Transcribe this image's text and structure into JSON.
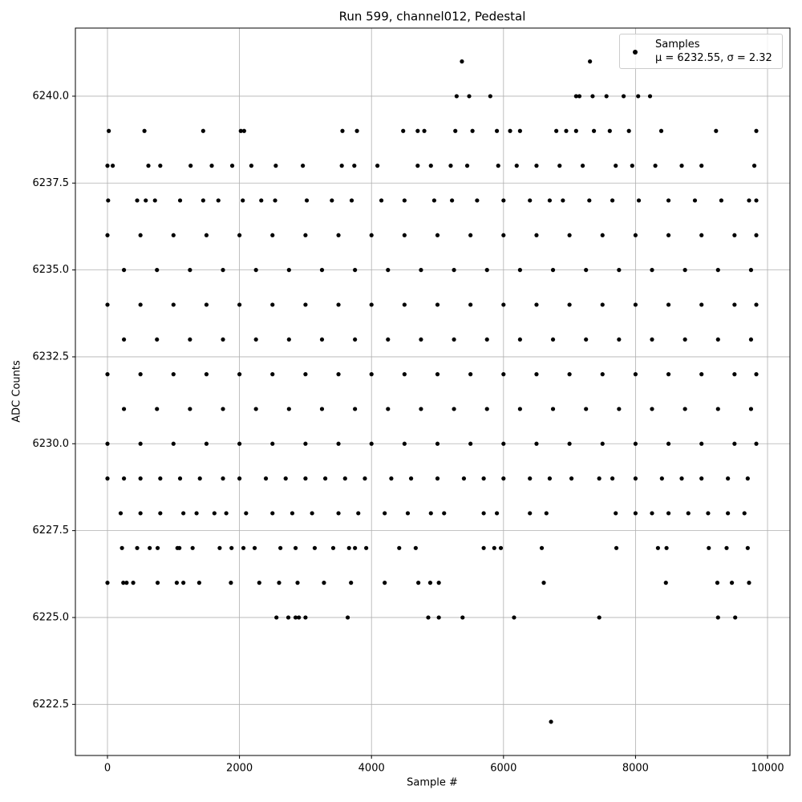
{
  "chart_data": {
    "type": "scatter",
    "title": "Run 599, channel012, Pedestal",
    "x_label": "Sample #",
    "y_label": "ADC Counts",
    "xlim": [
      -486,
      10340
    ],
    "ylim": [
      6221.03,
      6241.96
    ],
    "xticks": [
      0,
      2000,
      4000,
      6000,
      8000,
      10000
    ],
    "yticks": [
      {
        "value": 6222.5,
        "label": "6222.5"
      },
      {
        "value": 6225,
        "label": "6225.0"
      },
      {
        "value": 6227.5,
        "label": "6227.5"
      },
      {
        "value": 6230,
        "label": "6230.0"
      },
      {
        "value": 6232.5,
        "label": "6232.5"
      },
      {
        "value": 6235,
        "label": "6235.0"
      },
      {
        "value": 6237.5,
        "label": "6237.5"
      },
      {
        "value": 6240,
        "label": "6240.0"
      }
    ],
    "grid": true,
    "legend": "upper right",
    "series": [
      {
        "name": "Samples\nμ = 6232.55, σ = 2.32",
        "color": "#000000",
        "x": [
          0,
          500,
          1000,
          1500,
          2000,
          2500,
          3000,
          3500,
          4000,
          4500,
          5000,
          5500,
          6000,
          6500,
          7000,
          7500,
          8000,
          8500,
          9000,
          9500,
          9830,
          250,
          750,
          1250,
          1750,
          2250,
          2750,
          3250,
          3750,
          4250,
          4750,
          5250,
          5750,
          6250,
          6750,
          7250,
          7750,
          8250,
          8750,
          9250,
          9750,
          0,
          500,
          1000,
          1500,
          2000,
          2500,
          3000,
          3500,
          4000,
          4500,
          5000,
          5500,
          6000,
          6500,
          7000,
          7500,
          8000,
          8500,
          9000,
          9500,
          9830,
          250,
          750,
          1250,
          1750,
          2250,
          2750,
          3250,
          3750,
          4250,
          4750,
          5250,
          5750,
          6250,
          6750,
          7250,
          7750,
          8250,
          8750,
          9250,
          9750,
          0,
          500,
          1000,
          1500,
          2000,
          2500,
          3000,
          3500,
          4000,
          4500,
          5000,
          5500,
          6000,
          6500,
          7000,
          7500,
          8000,
          8500,
          9000,
          9500,
          9830,
          250,
          750,
          1250,
          1750,
          2250,
          2750,
          3250,
          3750,
          4250,
          4750,
          5250,
          5750,
          6250,
          6750,
          7250,
          7750,
          8250,
          8750,
          9250,
          9750,
          0,
          500,
          1000,
          1500,
          2000,
          2500,
          3000,
          3500,
          4000,
          4500,
          5000,
          5500,
          6000,
          6500,
          7000,
          7500,
          8000,
          8500,
          9000,
          9500,
          9830,
          10,
          450,
          580,
          720,
          1100,
          1450,
          1680,
          2050,
          2330,
          2540,
          3020,
          3400,
          3700,
          4150,
          4500,
          4950,
          5220,
          5600,
          6000,
          6400,
          6700,
          6900,
          7300,
          7650,
          8050,
          8500,
          8900,
          9300,
          9720,
          9830,
          0,
          80,
          620,
          800,
          1260,
          1580,
          1890,
          2180,
          2550,
          2960,
          3550,
          3740,
          4090,
          4700,
          4900,
          5200,
          5450,
          5920,
          6200,
          6500,
          6850,
          7200,
          7700,
          7950,
          8300,
          8700,
          9000,
          9800,
          20,
          560,
          1450,
          2020,
          2070,
          3560,
          3780,
          4480,
          4700,
          4800,
          5270,
          5530,
          5900,
          6100,
          6250,
          6800,
          6950,
          7100,
          7370,
          7610,
          7900,
          8390,
          9220,
          9830,
          5290,
          5480,
          5800,
          7100,
          7150,
          7350,
          7560,
          7820,
          8040,
          8220,
          5370,
          7310,
          0,
          250,
          500,
          800,
          1100,
          1400,
          1750,
          2000,
          2400,
          2700,
          3000,
          3300,
          3600,
          3900,
          4300,
          4600,
          5000,
          5400,
          5700,
          6000,
          6400,
          6700,
          7030,
          7450,
          7650,
          8000,
          8400,
          8700,
          9000,
          9400,
          9700,
          200,
          500,
          800,
          1150,
          1350,
          1620,
          1800,
          2100,
          2500,
          2800,
          3100,
          3500,
          3800,
          4200,
          4550,
          4900,
          5100,
          5700,
          5900,
          6400,
          6650,
          7700,
          8000,
          8250,
          8500,
          8800,
          9100,
          9400,
          9650,
          220,
          450,
          640,
          760,
          1060,
          1090,
          1290,
          1700,
          1880,
          2060,
          2230,
          2620,
          2850,
          3140,
          3420,
          3660,
          3750,
          3920,
          4420,
          4670,
          5700,
          5860,
          5960,
          6580,
          7710,
          8340,
          8470,
          9110,
          9380,
          9700,
          0,
          240,
          290,
          390,
          760,
          1050,
          1150,
          1390,
          1870,
          2300,
          2600,
          2880,
          3280,
          3690,
          4200,
          4710,
          4890,
          5020,
          6610,
          8460,
          9240,
          9460,
          9720,
          2560,
          2740,
          2850,
          2900,
          3000,
          3640,
          4860,
          5020,
          5380,
          6160,
          7450,
          9250,
          9510,
          6720
        ],
        "y": [
          6230,
          6230,
          6230,
          6230,
          6230,
          6230,
          6230,
          6230,
          6230,
          6230,
          6230,
          6230,
          6230,
          6230,
          6230,
          6230,
          6230,
          6230,
          6230,
          6230,
          6230,
          6231,
          6231,
          6231,
          6231,
          6231,
          6231,
          6231,
          6231,
          6231,
          6231,
          6231,
          6231,
          6231,
          6231,
          6231,
          6231,
          6231,
          6231,
          6231,
          6231,
          6232,
          6232,
          6232,
          6232,
          6232,
          6232,
          6232,
          6232,
          6232,
          6232,
          6232,
          6232,
          6232,
          6232,
          6232,
          6232,
          6232,
          6232,
          6232,
          6232,
          6232,
          6233,
          6233,
          6233,
          6233,
          6233,
          6233,
          6233,
          6233,
          6233,
          6233,
          6233,
          6233,
          6233,
          6233,
          6233,
          6233,
          6233,
          6233,
          6233,
          6233,
          6234,
          6234,
          6234,
          6234,
          6234,
          6234,
          6234,
          6234,
          6234,
          6234,
          6234,
          6234,
          6234,
          6234,
          6234,
          6234,
          6234,
          6234,
          6234,
          6234,
          6234,
          6235,
          6235,
          6235,
          6235,
          6235,
          6235,
          6235,
          6235,
          6235,
          6235,
          6235,
          6235,
          6235,
          6235,
          6235,
          6235,
          6235,
          6235,
          6235,
          6235,
          6236,
          6236,
          6236,
          6236,
          6236,
          6236,
          6236,
          6236,
          6236,
          6236,
          6236,
          6236,
          6236,
          6236,
          6236,
          6236,
          6236,
          6236,
          6236,
          6236,
          6236,
          6237,
          6237,
          6237,
          6237,
          6237,
          6237,
          6237,
          6237,
          6237,
          6237,
          6237,
          6237,
          6237,
          6237,
          6237,
          6237,
          6237,
          6237,
          6237,
          6237,
          6237,
          6237,
          6237,
          6237,
          6237,
          6237,
          6237,
          6237,
          6237,
          6237,
          6238,
          6238,
          6238,
          6238,
          6238,
          6238,
          6238,
          6238,
          6238,
          6238,
          6238,
          6238,
          6238,
          6238,
          6238,
          6238,
          6238,
          6238,
          6238,
          6238,
          6238,
          6238,
          6238,
          6238,
          6238,
          6238,
          6238,
          6238,
          6239,
          6239,
          6239,
          6239,
          6239,
          6239,
          6239,
          6239,
          6239,
          6239,
          6239,
          6239,
          6239,
          6239,
          6239,
          6239,
          6239,
          6239,
          6239,
          6239,
          6239,
          6239,
          6239,
          6239,
          6240,
          6240,
          6240,
          6240,
          6240,
          6240,
          6240,
          6240,
          6240,
          6240,
          6241,
          6241,
          6229,
          6229,
          6229,
          6229,
          6229,
          6229,
          6229,
          6229,
          6229,
          6229,
          6229,
          6229,
          6229,
          6229,
          6229,
          6229,
          6229,
          6229,
          6229,
          6229,
          6229,
          6229,
          6229,
          6229,
          6229,
          6229,
          6229,
          6229,
          6229,
          6229,
          6229,
          6228,
          6228,
          6228,
          6228,
          6228,
          6228,
          6228,
          6228,
          6228,
          6228,
          6228,
          6228,
          6228,
          6228,
          6228,
          6228,
          6228,
          6228,
          6228,
          6228,
          6228,
          6228,
          6228,
          6228,
          6228,
          6228,
          6228,
          6228,
          6228,
          6227,
          6227,
          6227,
          6227,
          6227,
          6227,
          6227,
          6227,
          6227,
          6227,
          6227,
          6227,
          6227,
          6227,
          6227,
          6227,
          6227,
          6227,
          6227,
          6227,
          6227,
          6227,
          6227,
          6227,
          6227,
          6227,
          6227,
          6227,
          6227,
          6227,
          6226,
          6226,
          6226,
          6226,
          6226,
          6226,
          6226,
          6226,
          6226,
          6226,
          6226,
          6226,
          6226,
          6226,
          6226,
          6226,
          6226,
          6226,
          6226,
          6226,
          6226,
          6226,
          6226,
          6225,
          6225,
          6225,
          6225,
          6225,
          6225,
          6225,
          6225,
          6225,
          6225,
          6225,
          6225,
          6225,
          6222
        ]
      }
    ]
  }
}
